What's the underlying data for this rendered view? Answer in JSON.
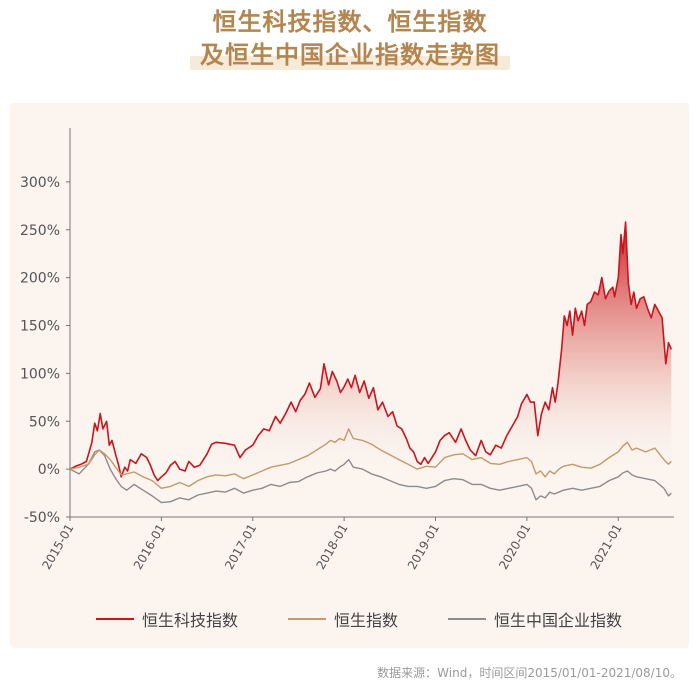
{
  "title": {
    "line1": "恒生科技指数、恒生指数",
    "line2": "及恒生中国企业指数走势图"
  },
  "source": "数据来源：Wind，时间区间2015/01/01-2021/08/10。",
  "chart_data": {
    "type": "line",
    "ylim": [
      -50,
      350
    ],
    "y_ticks": [
      -50,
      0,
      50,
      100,
      150,
      200,
      250,
      300
    ],
    "y_tick_labels": [
      "-50%",
      "0%",
      "50%",
      "100%",
      "150%",
      "200%",
      "250%",
      "300%"
    ],
    "x_range": [
      2015.0,
      2021.61
    ],
    "x_ticks": [
      2015,
      2016,
      2017,
      2018,
      2019,
      2020,
      2021
    ],
    "x_tick_labels": [
      "2015-01",
      "2016-01",
      "2017-01",
      "2018-01",
      "2019-01",
      "2020-01",
      "2021-01"
    ],
    "grid": false,
    "legend_position": "bottom",
    "series": [
      {
        "name": "恒生科技指数",
        "color": "#c9151e",
        "fill": true,
        "points": [
          [
            2015.0,
            0
          ],
          [
            2015.06,
            3
          ],
          [
            2015.12,
            5
          ],
          [
            2015.18,
            8
          ],
          [
            2015.24,
            28
          ],
          [
            2015.27,
            48
          ],
          [
            2015.3,
            40
          ],
          [
            2015.33,
            58
          ],
          [
            2015.36,
            42
          ],
          [
            2015.4,
            50
          ],
          [
            2015.43,
            25
          ],
          [
            2015.46,
            30
          ],
          [
            2015.5,
            15
          ],
          [
            2015.53,
            5
          ],
          [
            2015.56,
            -8
          ],
          [
            2015.6,
            2
          ],
          [
            2015.63,
            -2
          ],
          [
            2015.66,
            10
          ],
          [
            2015.72,
            6
          ],
          [
            2015.78,
            16
          ],
          [
            2015.84,
            12
          ],
          [
            2015.88,
            4
          ],
          [
            2015.92,
            -6
          ],
          [
            2015.96,
            -12
          ],
          [
            2016.0,
            -8
          ],
          [
            2016.05,
            -4
          ],
          [
            2016.1,
            4
          ],
          [
            2016.15,
            8
          ],
          [
            2016.2,
            0
          ],
          [
            2016.26,
            -2
          ],
          [
            2016.3,
            8
          ],
          [
            2016.36,
            2
          ],
          [
            2016.42,
            4
          ],
          [
            2016.5,
            16
          ],
          [
            2016.55,
            26
          ],
          [
            2016.6,
            28
          ],
          [
            2016.7,
            27
          ],
          [
            2016.8,
            25
          ],
          [
            2016.86,
            12
          ],
          [
            2016.92,
            20
          ],
          [
            2017.0,
            25
          ],
          [
            2017.06,
            35
          ],
          [
            2017.12,
            42
          ],
          [
            2017.18,
            40
          ],
          [
            2017.25,
            55
          ],
          [
            2017.3,
            48
          ],
          [
            2017.36,
            58
          ],
          [
            2017.42,
            70
          ],
          [
            2017.47,
            60
          ],
          [
            2017.52,
            72
          ],
          [
            2017.57,
            78
          ],
          [
            2017.62,
            90
          ],
          [
            2017.68,
            75
          ],
          [
            2017.74,
            84
          ],
          [
            2017.78,
            110
          ],
          [
            2017.83,
            88
          ],
          [
            2017.87,
            102
          ],
          [
            2017.92,
            92
          ],
          [
            2017.96,
            80
          ],
          [
            2018.0,
            86
          ],
          [
            2018.04,
            94
          ],
          [
            2018.08,
            85
          ],
          [
            2018.12,
            98
          ],
          [
            2018.17,
            80
          ],
          [
            2018.22,
            92
          ],
          [
            2018.27,
            74
          ],
          [
            2018.32,
            85
          ],
          [
            2018.37,
            62
          ],
          [
            2018.42,
            70
          ],
          [
            2018.48,
            55
          ],
          [
            2018.53,
            60
          ],
          [
            2018.58,
            45
          ],
          [
            2018.63,
            42
          ],
          [
            2018.68,
            32
          ],
          [
            2018.72,
            22
          ],
          [
            2018.76,
            18
          ],
          [
            2018.8,
            8
          ],
          [
            2018.84,
            5
          ],
          [
            2018.88,
            12
          ],
          [
            2018.92,
            6
          ],
          [
            2019.0,
            18
          ],
          [
            2019.05,
            30
          ],
          [
            2019.1,
            35
          ],
          [
            2019.15,
            38
          ],
          [
            2019.22,
            28
          ],
          [
            2019.28,
            42
          ],
          [
            2019.33,
            30
          ],
          [
            2019.38,
            20
          ],
          [
            2019.44,
            14
          ],
          [
            2019.5,
            30
          ],
          [
            2019.55,
            18
          ],
          [
            2019.6,
            15
          ],
          [
            2019.66,
            25
          ],
          [
            2019.72,
            22
          ],
          [
            2019.78,
            35
          ],
          [
            2019.84,
            45
          ],
          [
            2019.9,
            55
          ],
          [
            2019.94,
            68
          ],
          [
            2020.0,
            78
          ],
          [
            2020.04,
            70
          ],
          [
            2020.08,
            70
          ],
          [
            2020.12,
            35
          ],
          [
            2020.16,
            58
          ],
          [
            2020.2,
            70
          ],
          [
            2020.24,
            62
          ],
          [
            2020.28,
            85
          ],
          [
            2020.31,
            70
          ],
          [
            2020.34,
            90
          ],
          [
            2020.38,
            125
          ],
          [
            2020.41,
            160
          ],
          [
            2020.44,
            150
          ],
          [
            2020.47,
            165
          ],
          [
            2020.5,
            140
          ],
          [
            2020.53,
            168
          ],
          [
            2020.56,
            155
          ],
          [
            2020.6,
            165
          ],
          [
            2020.63,
            150
          ],
          [
            2020.66,
            172
          ],
          [
            2020.7,
            175
          ],
          [
            2020.74,
            185
          ],
          [
            2020.78,
            182
          ],
          [
            2020.82,
            200
          ],
          [
            2020.86,
            178
          ],
          [
            2020.9,
            186
          ],
          [
            2020.94,
            190
          ],
          [
            2020.96,
            180
          ],
          [
            2021.0,
            200
          ],
          [
            2021.03,
            245
          ],
          [
            2021.05,
            225
          ],
          [
            2021.08,
            258
          ],
          [
            2021.11,
            195
          ],
          [
            2021.14,
            172
          ],
          [
            2021.17,
            185
          ],
          [
            2021.2,
            168
          ],
          [
            2021.24,
            178
          ],
          [
            2021.28,
            180
          ],
          [
            2021.32,
            168
          ],
          [
            2021.36,
            158
          ],
          [
            2021.4,
            172
          ],
          [
            2021.44,
            165
          ],
          [
            2021.48,
            158
          ],
          [
            2021.52,
            110
          ],
          [
            2021.55,
            132
          ],
          [
            2021.58,
            125
          ]
        ]
      },
      {
        "name": "恒生指数",
        "color": "#c49a6a",
        "fill": false,
        "points": [
          [
            2015.0,
            0
          ],
          [
            2015.1,
            2
          ],
          [
            2015.2,
            5
          ],
          [
            2015.27,
            15
          ],
          [
            2015.32,
            20
          ],
          [
            2015.38,
            16
          ],
          [
            2015.44,
            10
          ],
          [
            2015.5,
            2
          ],
          [
            2015.56,
            -6
          ],
          [
            2015.62,
            -5
          ],
          [
            2015.7,
            -3
          ],
          [
            2015.8,
            -8
          ],
          [
            2015.9,
            -12
          ],
          [
            2016.0,
            -20
          ],
          [
            2016.1,
            -18
          ],
          [
            2016.2,
            -14
          ],
          [
            2016.3,
            -18
          ],
          [
            2016.4,
            -12
          ],
          [
            2016.5,
            -8
          ],
          [
            2016.6,
            -6
          ],
          [
            2016.7,
            -7
          ],
          [
            2016.8,
            -5
          ],
          [
            2016.9,
            -10
          ],
          [
            2017.0,
            -6
          ],
          [
            2017.1,
            -2
          ],
          [
            2017.2,
            2
          ],
          [
            2017.3,
            4
          ],
          [
            2017.4,
            6
          ],
          [
            2017.5,
            10
          ],
          [
            2017.6,
            14
          ],
          [
            2017.7,
            20
          ],
          [
            2017.8,
            26
          ],
          [
            2017.85,
            30
          ],
          [
            2017.9,
            28
          ],
          [
            2017.95,
            32
          ],
          [
            2018.0,
            30
          ],
          [
            2018.05,
            42
          ],
          [
            2018.1,
            32
          ],
          [
            2018.2,
            30
          ],
          [
            2018.3,
            26
          ],
          [
            2018.4,
            20
          ],
          [
            2018.5,
            15
          ],
          [
            2018.6,
            10
          ],
          [
            2018.7,
            5
          ],
          [
            2018.8,
            0
          ],
          [
            2018.9,
            3
          ],
          [
            2019.0,
            2
          ],
          [
            2019.1,
            12
          ],
          [
            2019.2,
            15
          ],
          [
            2019.3,
            16
          ],
          [
            2019.4,
            10
          ],
          [
            2019.5,
            12
          ],
          [
            2019.6,
            6
          ],
          [
            2019.7,
            5
          ],
          [
            2019.8,
            8
          ],
          [
            2019.9,
            10
          ],
          [
            2020.0,
            12
          ],
          [
            2020.05,
            8
          ],
          [
            2020.1,
            -5
          ],
          [
            2020.15,
            -2
          ],
          [
            2020.2,
            -8
          ],
          [
            2020.25,
            -2
          ],
          [
            2020.3,
            -5
          ],
          [
            2020.35,
            0
          ],
          [
            2020.4,
            3
          ],
          [
            2020.5,
            5
          ],
          [
            2020.6,
            2
          ],
          [
            2020.7,
            1
          ],
          [
            2020.8,
            5
          ],
          [
            2020.9,
            12
          ],
          [
            2021.0,
            18
          ],
          [
            2021.05,
            24
          ],
          [
            2021.1,
            28
          ],
          [
            2021.15,
            20
          ],
          [
            2021.2,
            22
          ],
          [
            2021.3,
            18
          ],
          [
            2021.4,
            22
          ],
          [
            2021.5,
            10
          ],
          [
            2021.55,
            5
          ],
          [
            2021.58,
            8
          ]
        ]
      },
      {
        "name": "恒生中国企业指数",
        "color": "#8c8c8c",
        "fill": false,
        "points": [
          [
            2015.0,
            0
          ],
          [
            2015.1,
            -5
          ],
          [
            2015.2,
            5
          ],
          [
            2015.27,
            18
          ],
          [
            2015.32,
            20
          ],
          [
            2015.38,
            14
          ],
          [
            2015.44,
            0
          ],
          [
            2015.5,
            -10
          ],
          [
            2015.56,
            -18
          ],
          [
            2015.62,
            -22
          ],
          [
            2015.7,
            -16
          ],
          [
            2015.8,
            -22
          ],
          [
            2015.9,
            -28
          ],
          [
            2016.0,
            -35
          ],
          [
            2016.1,
            -34
          ],
          [
            2016.2,
            -30
          ],
          [
            2016.3,
            -32
          ],
          [
            2016.4,
            -27
          ],
          [
            2016.5,
            -25
          ],
          [
            2016.6,
            -23
          ],
          [
            2016.7,
            -24
          ],
          [
            2016.8,
            -20
          ],
          [
            2016.9,
            -25
          ],
          [
            2017.0,
            -22
          ],
          [
            2017.1,
            -20
          ],
          [
            2017.2,
            -16
          ],
          [
            2017.3,
            -18
          ],
          [
            2017.4,
            -14
          ],
          [
            2017.5,
            -13
          ],
          [
            2017.6,
            -8
          ],
          [
            2017.7,
            -4
          ],
          [
            2017.8,
            -2
          ],
          [
            2017.85,
            0
          ],
          [
            2017.9,
            -2
          ],
          [
            2017.95,
            2
          ],
          [
            2018.0,
            5
          ],
          [
            2018.05,
            10
          ],
          [
            2018.1,
            2
          ],
          [
            2018.2,
            0
          ],
          [
            2018.3,
            -5
          ],
          [
            2018.4,
            -8
          ],
          [
            2018.5,
            -12
          ],
          [
            2018.6,
            -16
          ],
          [
            2018.7,
            -18
          ],
          [
            2018.8,
            -18
          ],
          [
            2018.9,
            -20
          ],
          [
            2019.0,
            -18
          ],
          [
            2019.1,
            -12
          ],
          [
            2019.2,
            -10
          ],
          [
            2019.3,
            -11
          ],
          [
            2019.4,
            -16
          ],
          [
            2019.5,
            -16
          ],
          [
            2019.6,
            -20
          ],
          [
            2019.7,
            -22
          ],
          [
            2019.8,
            -20
          ],
          [
            2019.9,
            -18
          ],
          [
            2020.0,
            -16
          ],
          [
            2020.05,
            -20
          ],
          [
            2020.1,
            -32
          ],
          [
            2020.15,
            -28
          ],
          [
            2020.2,
            -30
          ],
          [
            2020.25,
            -24
          ],
          [
            2020.3,
            -26
          ],
          [
            2020.4,
            -22
          ],
          [
            2020.5,
            -20
          ],
          [
            2020.6,
            -22
          ],
          [
            2020.7,
            -20
          ],
          [
            2020.8,
            -18
          ],
          [
            2020.9,
            -12
          ],
          [
            2021.0,
            -8
          ],
          [
            2021.05,
            -4
          ],
          [
            2021.1,
            -2
          ],
          [
            2021.15,
            -6
          ],
          [
            2021.2,
            -8
          ],
          [
            2021.3,
            -10
          ],
          [
            2021.4,
            -12
          ],
          [
            2021.5,
            -20
          ],
          [
            2021.55,
            -28
          ],
          [
            2021.58,
            -25
          ]
        ]
      }
    ]
  }
}
